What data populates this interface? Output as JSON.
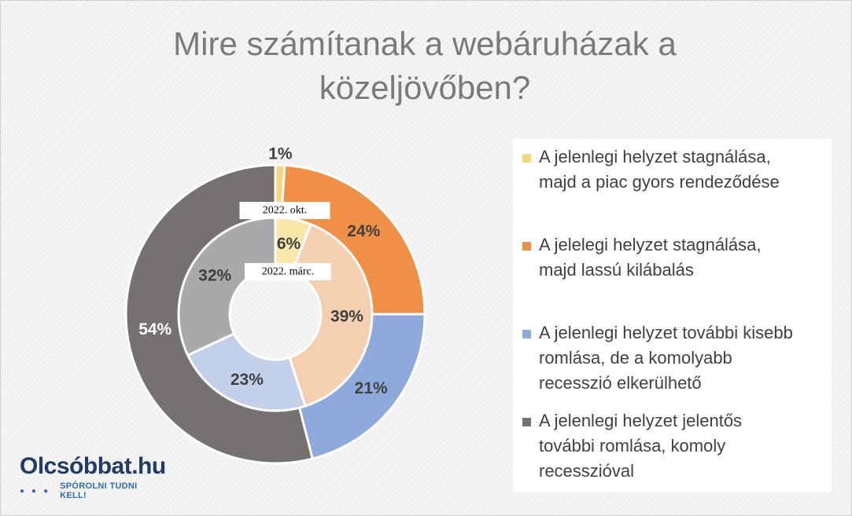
{
  "chart_data": {
    "type": "donut",
    "title": "Mire számítanak a webáruházak a közeljövőben?",
    "categories": [
      "A jelenlegi helyzet stagnálása, majd a piac gyors rendeződése",
      "A jelelegi helyzet stagnálása, majd lassú kilábalás",
      "A jelenlegi helyzet további kisebb romlása, de a komolyabb recesszió elkerülhető",
      "A jelenlegi helyzet jelentős további romlása, komoly recesszióval"
    ],
    "legend_lines": [
      "A jelenlegi helyzet stagnálása,\nmajd a piac gyors rendeződése",
      "A jelelegi helyzet stagnálása,\nmajd lassú kilábalás",
      "A jelenlegi helyzet további kisebb\nromlása, de a komolyabb\nrecesszió elkerülhető",
      "A jelenlegi helyzet jelentős\ntovábbi romlása, komoly\nrecesszióval"
    ],
    "colors": [
      "#f5d77a",
      "#f08f46",
      "#8eaadc",
      "#767171"
    ],
    "inner_colors": [
      "#f8e7a8",
      "#f4cfb0",
      "#c2d0ea",
      "#a9a9a9"
    ],
    "series": [
      {
        "name": "2022. okt.",
        "ring": "outer",
        "values": [
          1,
          24,
          21,
          54
        ],
        "labels": [
          "1%",
          "24%",
          "21%",
          "54%"
        ]
      },
      {
        "name": "2022. márc.",
        "ring": "inner",
        "values": [
          6,
          39,
          23,
          32
        ],
        "labels": [
          "6%",
          "39%",
          "23%",
          "32%"
        ]
      }
    ],
    "legend_position": "right"
  },
  "brand": {
    "name": "Olcsóbbat.hu",
    "tagline": "SPÓROLNI TUDNI KELL!"
  }
}
